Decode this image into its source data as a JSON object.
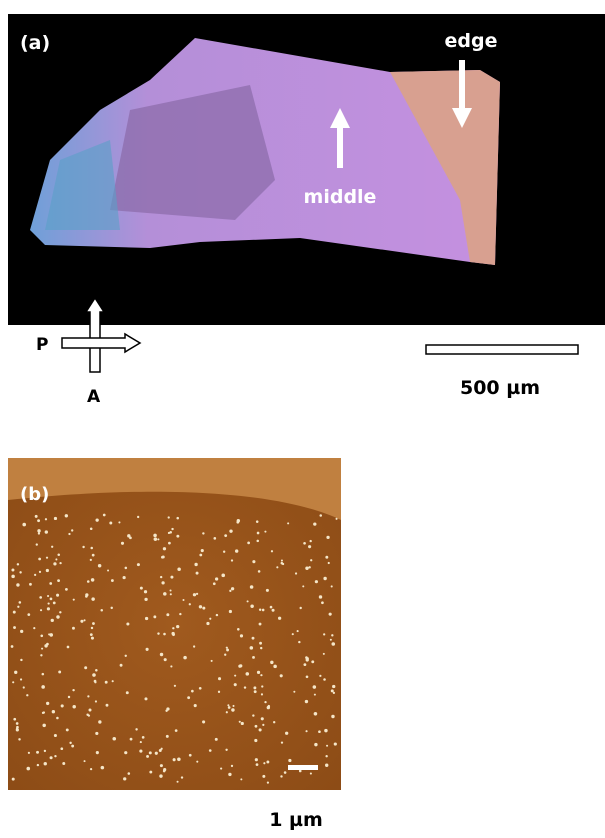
{
  "panel_a": {
    "label": "(a)",
    "edge_label": "edge",
    "middle_label": "middle",
    "polarizer_label": "P",
    "analyzer_label": "A",
    "scale_bar_label": "500 µm"
  },
  "panel_b": {
    "label": "(b)",
    "scale_bar_label": "1 µm"
  }
}
